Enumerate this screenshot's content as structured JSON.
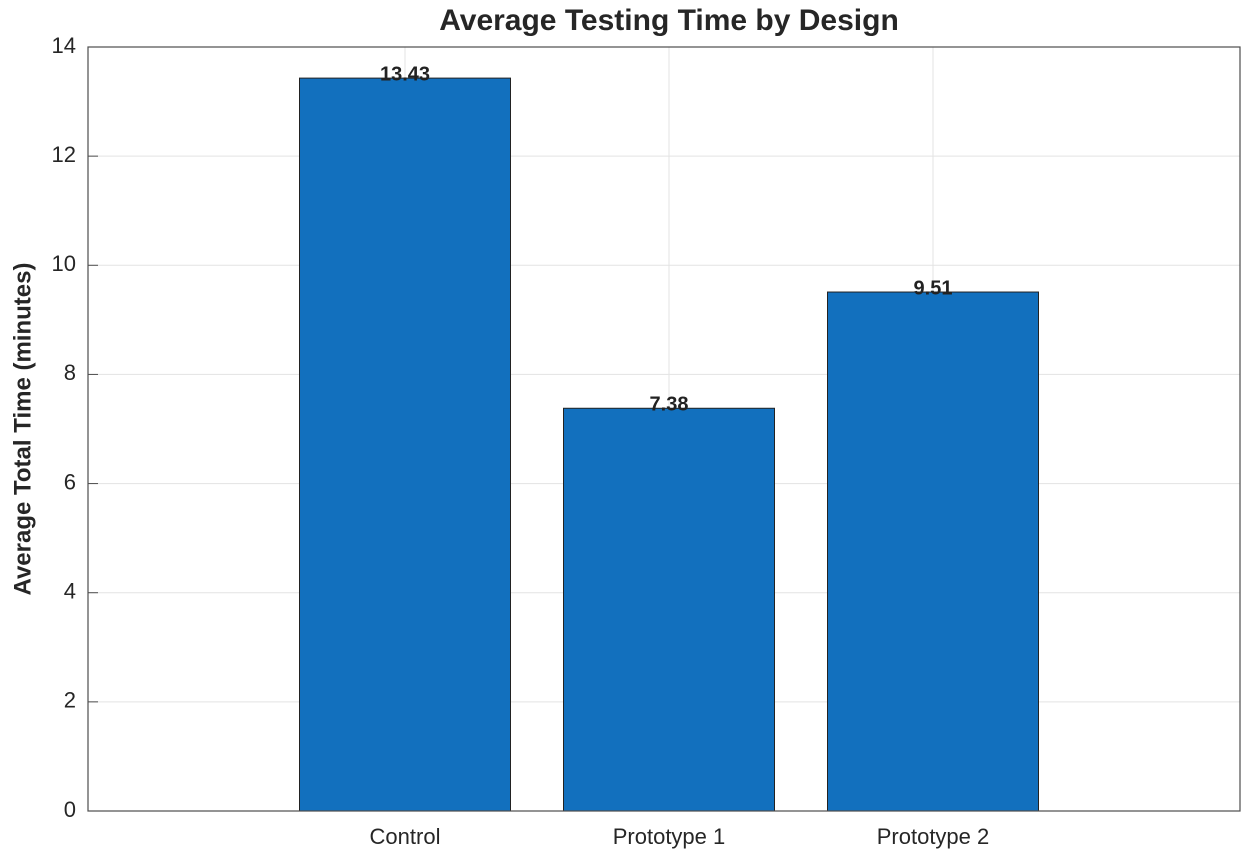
{
  "chart_data": {
    "type": "bar",
    "title": "Average Testing Time by Design",
    "y_label": "Average Total Time (minutes)",
    "categories": [
      "Control",
      "Prototype 1",
      "Prototype 2"
    ],
    "values": [
      13.43,
      7.38,
      9.51
    ],
    "color": "#1270be",
    "ylim": [
      0,
      14
    ],
    "yticks": [
      0,
      2,
      4,
      6,
      8,
      10,
      12,
      14
    ],
    "grid": true
  }
}
